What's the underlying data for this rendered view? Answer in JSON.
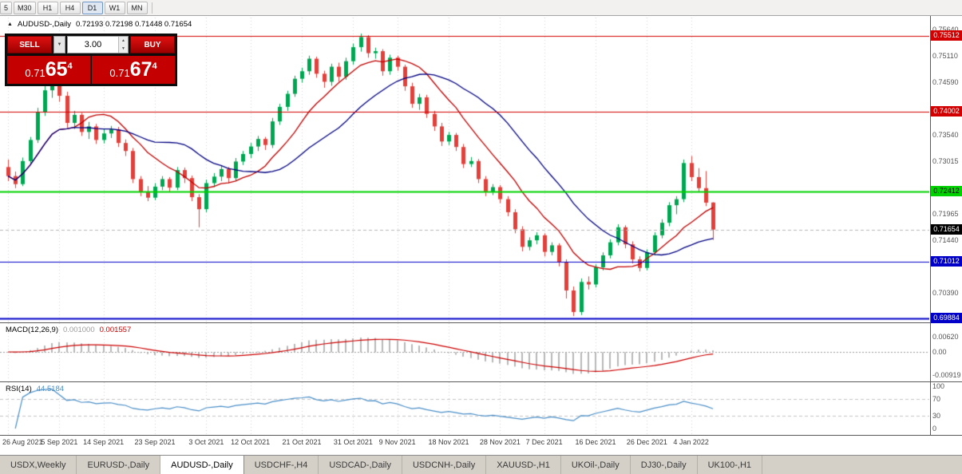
{
  "toolbar": {
    "timeframes": [
      "5",
      "M30",
      "H1",
      "H4",
      "D1",
      "W1",
      "MN"
    ],
    "active": "D1"
  },
  "chart": {
    "header_symbol": "AUDUSD-,Daily",
    "header_ohlc": "0.72193 0.72198 0.71448 0.71654"
  },
  "trade_widget": {
    "sell_label": "SELL",
    "buy_label": "BUY",
    "volume": "3.00",
    "bid": {
      "prefix": "0.71",
      "big": "65",
      "sup": "4"
    },
    "ask": {
      "prefix": "0.71",
      "big": "67",
      "sup": "4"
    }
  },
  "chart_data": {
    "type": "candlestick",
    "symbol": "AUDUSD-",
    "timeframe": "Daily",
    "ylim": [
      0.6982,
      0.7588
    ],
    "colors": {
      "up": "#00a651",
      "down": "#e2403a",
      "grid": "#d4d4d4",
      "macd_bar": "#b8b8b8",
      "macd_signal": "#cc0000",
      "rsi": "#4a8fc7"
    },
    "ma": [
      {
        "period": 10,
        "color": "#c00000"
      },
      {
        "period": 21,
        "color": "#000080"
      }
    ],
    "ohlc": [
      [
        0.729,
        0.7305,
        0.7262,
        0.7272
      ],
      [
        0.7272,
        0.7281,
        0.7248,
        0.7256
      ],
      [
        0.7256,
        0.7309,
        0.7252,
        0.7302
      ],
      [
        0.7302,
        0.735,
        0.7296,
        0.7344
      ],
      [
        0.7344,
        0.7408,
        0.7338,
        0.74
      ],
      [
        0.74,
        0.7452,
        0.7392,
        0.7443
      ],
      [
        0.7443,
        0.7477,
        0.7428,
        0.747
      ],
      [
        0.747,
        0.7475,
        0.742,
        0.7432
      ],
      [
        0.7432,
        0.744,
        0.7369,
        0.7378
      ],
      [
        0.7378,
        0.7402,
        0.7366,
        0.7394
      ],
      [
        0.7394,
        0.7398,
        0.7352,
        0.736
      ],
      [
        0.736,
        0.738,
        0.7346,
        0.7371
      ],
      [
        0.7371,
        0.7376,
        0.7336,
        0.7344
      ],
      [
        0.7344,
        0.7367,
        0.7337,
        0.7357
      ],
      [
        0.7357,
        0.7372,
        0.7348,
        0.7365
      ],
      [
        0.7365,
        0.737,
        0.733,
        0.7338
      ],
      [
        0.7338,
        0.7345,
        0.7312,
        0.7322
      ],
      [
        0.7322,
        0.7328,
        0.7258,
        0.7266
      ],
      [
        0.7266,
        0.7272,
        0.7232,
        0.724
      ],
      [
        0.724,
        0.7252,
        0.7222,
        0.7229
      ],
      [
        0.7229,
        0.7258,
        0.7224,
        0.7251
      ],
      [
        0.7251,
        0.7272,
        0.7244,
        0.7266
      ],
      [
        0.7266,
        0.727,
        0.724,
        0.7249
      ],
      [
        0.7249,
        0.729,
        0.7244,
        0.7284
      ],
      [
        0.7284,
        0.7289,
        0.7258,
        0.7268
      ],
      [
        0.7268,
        0.7273,
        0.7222,
        0.723
      ],
      [
        0.723,
        0.7236,
        0.717,
        0.7206
      ],
      [
        0.7206,
        0.7265,
        0.72,
        0.7258
      ],
      [
        0.7258,
        0.7278,
        0.725,
        0.7271
      ],
      [
        0.7271,
        0.7292,
        0.7262,
        0.7286
      ],
      [
        0.7286,
        0.729,
        0.7258,
        0.7268
      ],
      [
        0.7268,
        0.7308,
        0.7262,
        0.7301
      ],
      [
        0.7301,
        0.7322,
        0.7294,
        0.7316
      ],
      [
        0.7316,
        0.7338,
        0.7308,
        0.7331
      ],
      [
        0.7331,
        0.7352,
        0.7322,
        0.7346
      ],
      [
        0.7346,
        0.735,
        0.7324,
        0.7334
      ],
      [
        0.7334,
        0.7388,
        0.7328,
        0.7381
      ],
      [
        0.7381,
        0.7416,
        0.7374,
        0.741
      ],
      [
        0.741,
        0.7442,
        0.7402,
        0.7436
      ],
      [
        0.7436,
        0.7472,
        0.743,
        0.7466
      ],
      [
        0.7466,
        0.7488,
        0.7458,
        0.7481
      ],
      [
        0.7481,
        0.7512,
        0.7474,
        0.7506
      ],
      [
        0.7506,
        0.751,
        0.7468,
        0.7476
      ],
      [
        0.7476,
        0.7482,
        0.7448,
        0.746
      ],
      [
        0.746,
        0.7496,
        0.7452,
        0.749
      ],
      [
        0.749,
        0.7498,
        0.746,
        0.747
      ],
      [
        0.747,
        0.7508,
        0.7464,
        0.7501
      ],
      [
        0.7501,
        0.7536,
        0.7494,
        0.7529
      ],
      [
        0.7529,
        0.7556,
        0.752,
        0.7549
      ],
      [
        0.7549,
        0.7553,
        0.7508,
        0.7517
      ],
      [
        0.7517,
        0.7528,
        0.7506,
        0.7521
      ],
      [
        0.7521,
        0.7525,
        0.7472,
        0.7481
      ],
      [
        0.7481,
        0.7514,
        0.7474,
        0.7508
      ],
      [
        0.7508,
        0.7512,
        0.7482,
        0.749
      ],
      [
        0.749,
        0.7494,
        0.7442,
        0.7451
      ],
      [
        0.7451,
        0.7458,
        0.7408,
        0.7416
      ],
      [
        0.7416,
        0.7436,
        0.7404,
        0.7429
      ],
      [
        0.7429,
        0.7434,
        0.7388,
        0.7396
      ],
      [
        0.7396,
        0.7402,
        0.7362,
        0.7371
      ],
      [
        0.7371,
        0.7378,
        0.7332,
        0.7341
      ],
      [
        0.7341,
        0.736,
        0.7334,
        0.7354
      ],
      [
        0.7354,
        0.7358,
        0.7322,
        0.733
      ],
      [
        0.733,
        0.7336,
        0.7288,
        0.7296
      ],
      [
        0.7296,
        0.731,
        0.729,
        0.7302
      ],
      [
        0.7302,
        0.7306,
        0.7258,
        0.7266
      ],
      [
        0.7266,
        0.7272,
        0.7232,
        0.7241
      ],
      [
        0.7241,
        0.7256,
        0.7234,
        0.725
      ],
      [
        0.725,
        0.7254,
        0.7218,
        0.7226
      ],
      [
        0.7226,
        0.7232,
        0.7192,
        0.72
      ],
      [
        0.72,
        0.7206,
        0.7158,
        0.7166
      ],
      [
        0.7166,
        0.7172,
        0.7122,
        0.7131
      ],
      [
        0.7131,
        0.715,
        0.7124,
        0.7144
      ],
      [
        0.7144,
        0.716,
        0.7136,
        0.7154
      ],
      [
        0.7154,
        0.7158,
        0.7112,
        0.7121
      ],
      [
        0.7121,
        0.714,
        0.7114,
        0.7134
      ],
      [
        0.7134,
        0.7138,
        0.7092,
        0.7101
      ],
      [
        0.7101,
        0.7106,
        0.7028,
        0.7044
      ],
      [
        0.7044,
        0.7052,
        0.6993,
        0.7001
      ],
      [
        0.7001,
        0.7068,
        0.6995,
        0.7061
      ],
      [
        0.7061,
        0.7072,
        0.7046,
        0.7056
      ],
      [
        0.7056,
        0.7096,
        0.705,
        0.709
      ],
      [
        0.709,
        0.712,
        0.7084,
        0.7114
      ],
      [
        0.7114,
        0.7146,
        0.7108,
        0.714
      ],
      [
        0.714,
        0.7176,
        0.7134,
        0.717
      ],
      [
        0.717,
        0.7174,
        0.7128,
        0.7136
      ],
      [
        0.7136,
        0.7142,
        0.7098,
        0.7106
      ],
      [
        0.7106,
        0.7112,
        0.7082,
        0.7089
      ],
      [
        0.7089,
        0.7126,
        0.7084,
        0.712
      ],
      [
        0.712,
        0.716,
        0.7114,
        0.7154
      ],
      [
        0.7154,
        0.7186,
        0.7148,
        0.7179
      ],
      [
        0.7179,
        0.722,
        0.7172,
        0.7214
      ],
      [
        0.7214,
        0.7232,
        0.7196,
        0.7226
      ],
      [
        0.7226,
        0.7305,
        0.722,
        0.7298
      ],
      [
        0.7298,
        0.7312,
        0.7262,
        0.727
      ],
      [
        0.727,
        0.7288,
        0.724,
        0.7248
      ],
      [
        0.7248,
        0.7282,
        0.7212,
        0.7219
      ],
      [
        0.72193,
        0.72198,
        0.71448,
        0.71654
      ]
    ],
    "date_ticks": [
      {
        "label": "26 Aug 2021",
        "i": 0
      },
      {
        "label": "5 Sep 2021",
        "i": 7
      },
      {
        "label": "14 Sep 2021",
        "i": 13
      },
      {
        "label": "23 Sep 2021",
        "i": 20
      },
      {
        "label": "3 Oct 2021",
        "i": 27
      },
      {
        "label": "12 Oct 2021",
        "i": 33
      },
      {
        "label": "21 Oct 2021",
        "i": 40
      },
      {
        "label": "31 Oct 2021",
        "i": 47
      },
      {
        "label": "9 Nov 2021",
        "i": 53
      },
      {
        "label": "18 Nov 2021",
        "i": 60
      },
      {
        "label": "28 Nov 2021",
        "i": 67
      },
      {
        "label": "7 Dec 2021",
        "i": 73
      },
      {
        "label": "16 Dec 2021",
        "i": 80
      },
      {
        "label": "26 Dec 2021",
        "i": 87
      },
      {
        "label": "4 Jan 2022",
        "i": 93
      }
    ],
    "y_axis_labels": [
      {
        "text": "0.75640",
        "price": 0.7564
      },
      {
        "text": "0.75110",
        "price": 0.7511
      },
      {
        "text": "0.74590",
        "price": 0.7459
      },
      {
        "text": "0.73540",
        "price": 0.7354
      },
      {
        "text": "0.73015",
        "price": 0.73015
      },
      {
        "text": "0.71965",
        "price": 0.71965
      },
      {
        "text": "0.71440",
        "price": 0.7144
      },
      {
        "text": "0.70390",
        "price": 0.7039
      }
    ],
    "hlines": [
      {
        "price": 0.75512,
        "color": "#d20000",
        "lw": 1,
        "label": "0.75512"
      },
      {
        "price": 0.74002,
        "color": "#d20000",
        "lw": 1,
        "label": "0.74002"
      },
      {
        "price": 0.72412,
        "color": "#00d200",
        "lw": 2,
        "label": "0.72412",
        "badge_text": "#000"
      },
      {
        "price": 0.71012,
        "color": "#0000c8",
        "lw": 1,
        "label": "0.71012"
      },
      {
        "price": 0.69884,
        "color": "#0000c8",
        "lw": 2,
        "label": "0.69884"
      }
    ],
    "current": {
      "price": 0.71654,
      "label": "0.71654"
    },
    "macd": {
      "label": "MACD(12,26,9)",
      "main_value": "0.001000",
      "signal_value": "0.001557",
      "fast": 12,
      "slow": 26,
      "signal": 9,
      "ylim": [
        -0.0115,
        0.0115
      ],
      "axis": [
        {
          "text": "0.00620",
          "v": 0.0062
        },
        {
          "text": "0.00",
          "v": 0
        },
        {
          "text": "-0.00919",
          "v": -0.00919
        }
      ]
    },
    "rsi": {
      "label": "RSI(14)",
      "value": "44.5184",
      "period": 14,
      "axis": [
        {
          "text": "100",
          "v": 100
        },
        {
          "text": "70",
          "v": 70
        },
        {
          "text": "30",
          "v": 30
        },
        {
          "text": "0",
          "v": 0
        }
      ]
    }
  },
  "tabs": {
    "items": [
      "USDX,Weekly",
      "EURUSD-,Daily",
      "AUDUSD-,Daily",
      "USDCHF-,H4",
      "USDCAD-,Daily",
      "USDCNH-,Daily",
      "XAUUSD-,H1",
      "UKOil-,Daily",
      "DJ30-,Daily",
      "UK100-,H1"
    ],
    "active": "AUDUSD-,Daily"
  }
}
